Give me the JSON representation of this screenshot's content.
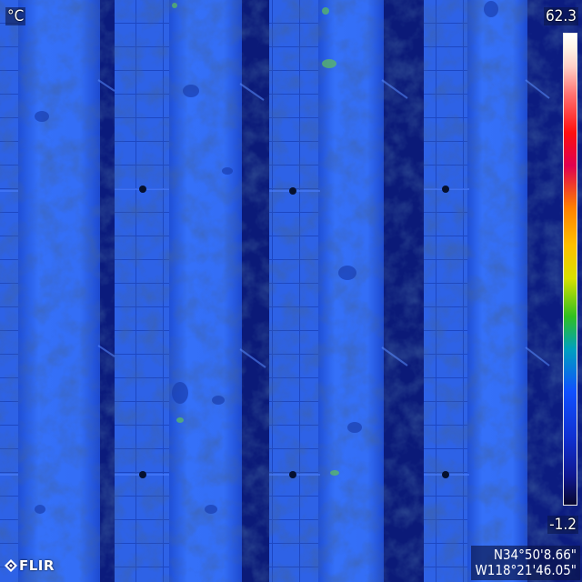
{
  "overlay": {
    "unit": "°C",
    "temp_max": "62.3",
    "temp_min": "-1.2",
    "gps_lat": "N34°50'8.66\"",
    "gps_lon": "W118°21'46.05\"",
    "logo_text": "FLIR"
  },
  "colors": {
    "panel_face": "#2a63ea",
    "panel_bright": "#3f7bff",
    "solar_cell": "#2e62e6",
    "gap": "#0d1e86",
    "hot_spot": "#5ec05a"
  },
  "icons": [
    "flir-logo-icon"
  ]
}
